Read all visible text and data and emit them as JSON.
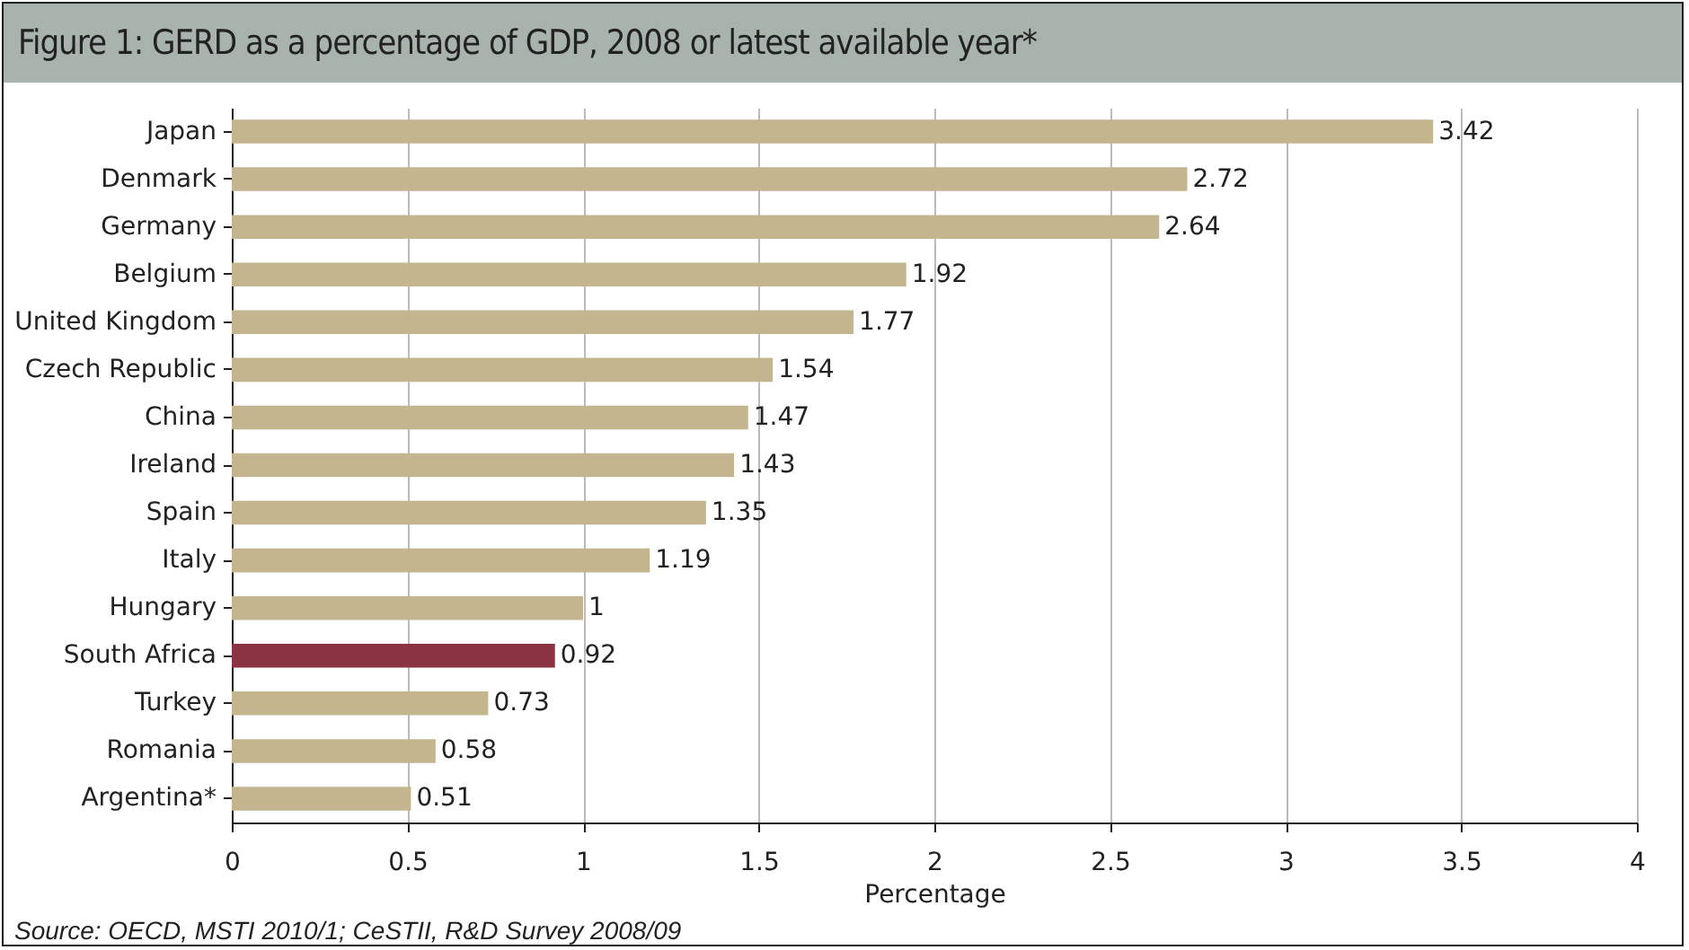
{
  "chart_data": {
    "type": "bar",
    "orientation": "horizontal",
    "title": "Figure 1:  GERD as a percentage of GDP, 2008 or latest available year*",
    "xlabel": "Percentage",
    "categories": [
      "Japan",
      "Denmark",
      "Germany",
      "Belgium",
      "United Kingdom",
      "Czech Republic",
      "China",
      "Ireland",
      "Spain",
      "Italy",
      "Hungary",
      "South Africa",
      "Turkey",
      "Romania",
      "Argentina*"
    ],
    "values": [
      3.42,
      2.72,
      2.64,
      1.92,
      1.77,
      1.54,
      1.47,
      1.43,
      1.35,
      1.19,
      1,
      0.92,
      0.73,
      0.58,
      0.51
    ],
    "colors": [
      "#c4b58f",
      "#c4b58f",
      "#c4b58f",
      "#c4b58f",
      "#c4b58f",
      "#c4b58f",
      "#c4b58f",
      "#c4b58f",
      "#c4b58f",
      "#c4b58f",
      "#c4b58f",
      "#8c3343",
      "#c4b58f",
      "#c4b58f",
      "#c4b58f"
    ],
    "xlim": [
      0,
      4
    ],
    "xticks": [
      0,
      0.5,
      1,
      1.5,
      2,
      2.5,
      3,
      3.5,
      4
    ],
    "grid": "x",
    "data_labels": true,
    "annotations": [
      "Source: OECD, MSTI 2010/1; CeSTII, R&D Survey 2008/09"
    ]
  }
}
